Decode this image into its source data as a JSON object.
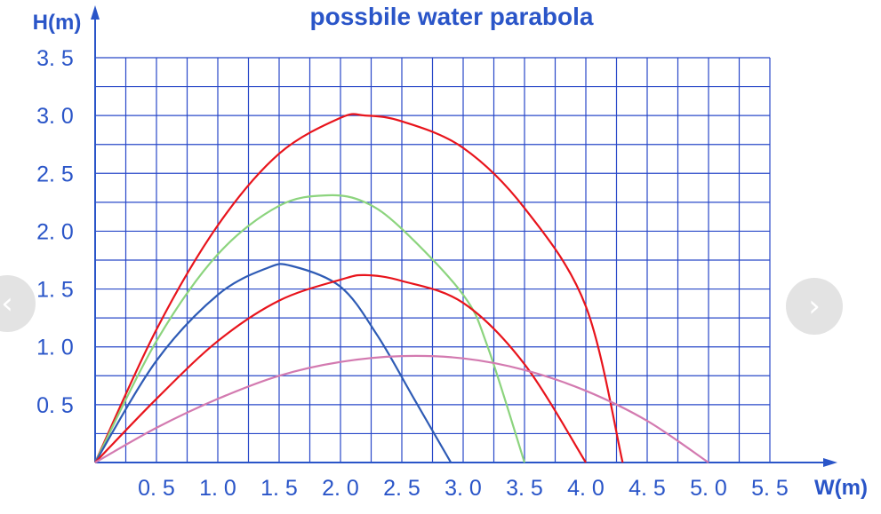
{
  "chart_data": {
    "type": "line",
    "title": "possbile water parabola",
    "xlabel": "W(m)",
    "ylabel": "H(m)",
    "xlim": [
      0,
      5.5
    ],
    "ylim": [
      0,
      3.5
    ],
    "x_ticks": [
      "0. 5",
      "1. 0",
      "1. 5",
      "2. 0",
      "2. 5",
      "3. 0",
      "3. 5",
      "4. 0",
      "4. 5",
      "5. 0",
      "5. 5"
    ],
    "x_tick_values": [
      0.5,
      1.0,
      1.5,
      2.0,
      2.5,
      3.0,
      3.5,
      4.0,
      4.5,
      5.0,
      5.5
    ],
    "y_ticks": [
      "0. 5",
      "1. 0",
      "1. 5",
      "2. 0",
      "2. 5",
      "3. 0",
      "3. 5"
    ],
    "y_tick_values": [
      0.5,
      1.0,
      1.5,
      2.0,
      2.5,
      3.0,
      3.5
    ],
    "grid": true,
    "series": [
      {
        "color": "#e8141c",
        "points": [
          [
            0,
            0
          ],
          [
            0.5,
            1.15
          ],
          [
            1.0,
            2.05
          ],
          [
            1.5,
            2.67
          ],
          [
            2.0,
            2.98
          ],
          [
            2.2,
            3.0
          ],
          [
            2.5,
            2.95
          ],
          [
            3.0,
            2.72
          ],
          [
            3.5,
            2.2
          ],
          [
            4.0,
            1.35
          ],
          [
            4.3,
            0.0
          ]
        ]
      },
      {
        "color": "#8cd47e",
        "points": [
          [
            0,
            0
          ],
          [
            0.5,
            1.05
          ],
          [
            1.0,
            1.8
          ],
          [
            1.5,
            2.22
          ],
          [
            1.9,
            2.31
          ],
          [
            2.2,
            2.25
          ],
          [
            2.5,
            2.02
          ],
          [
            3.0,
            1.45
          ],
          [
            3.2,
            1.0
          ],
          [
            3.5,
            0.0
          ]
        ]
      },
      {
        "color": "#2e5bb5",
        "points": [
          [
            0,
            0
          ],
          [
            0.5,
            0.88
          ],
          [
            1.0,
            1.45
          ],
          [
            1.4,
            1.68
          ],
          [
            1.6,
            1.7
          ],
          [
            2.0,
            1.52
          ],
          [
            2.3,
            1.1
          ],
          [
            2.6,
            0.55
          ],
          [
            2.9,
            0.0
          ]
        ]
      },
      {
        "color": "#e8141c",
        "points": [
          [
            0,
            0
          ],
          [
            0.5,
            0.55
          ],
          [
            1.0,
            1.05
          ],
          [
            1.5,
            1.4
          ],
          [
            2.0,
            1.58
          ],
          [
            2.2,
            1.62
          ],
          [
            2.5,
            1.57
          ],
          [
            3.0,
            1.38
          ],
          [
            3.5,
            0.85
          ],
          [
            4.0,
            0.0
          ]
        ]
      },
      {
        "color": "#d37ab0",
        "points": [
          [
            0,
            0
          ],
          [
            0.5,
            0.3
          ],
          [
            1.0,
            0.55
          ],
          [
            1.5,
            0.75
          ],
          [
            2.0,
            0.87
          ],
          [
            2.5,
            0.92
          ],
          [
            3.0,
            0.9
          ],
          [
            3.5,
            0.8
          ],
          [
            4.0,
            0.62
          ],
          [
            4.5,
            0.36
          ],
          [
            5.0,
            0.0
          ]
        ]
      }
    ]
  },
  "nav": {
    "prev_icon": "chevron-left-icon",
    "prev_glyph": "‹",
    "next_icon": "chevron-right-icon",
    "next_glyph": "›"
  }
}
